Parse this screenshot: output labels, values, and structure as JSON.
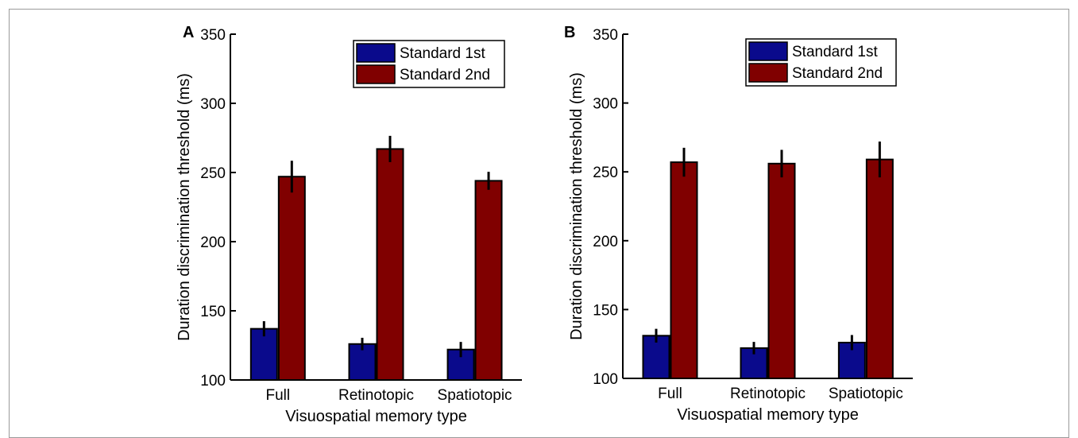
{
  "chart_data": [
    {
      "type": "bar",
      "panel": "A",
      "categories": [
        "Full",
        "Retinotopic",
        "Spatiotopic"
      ],
      "series": [
        {
          "name": "Standard 1st",
          "color": "#0a0a8c",
          "values": [
            137,
            126,
            122
          ],
          "errors": [
            5.5,
            4.5,
            5.5
          ]
        },
        {
          "name": "Standard 2nd",
          "color": "#800000",
          "values": [
            247,
            267,
            244
          ],
          "errors": [
            11.5,
            9.5,
            6.5
          ]
        }
      ],
      "xlabel": "Visuospatial memory type",
      "ylabel": "Duration discrimination threshold (ms)",
      "ylim": [
        100,
        350
      ],
      "yticks": [
        "100",
        "150",
        "200",
        "250",
        "300",
        "350"
      ],
      "legend": "top-right",
      "grid": false
    },
    {
      "type": "bar",
      "panel": "B",
      "categories": [
        "Full",
        "Retinotopic",
        "Spatiotopic"
      ],
      "series": [
        {
          "name": "Standard 1st",
          "color": "#0a0a8c",
          "values": [
            131,
            122,
            126
          ],
          "errors": [
            5,
            4.5,
            5.5
          ]
        },
        {
          "name": "Standard 2nd",
          "color": "#800000",
          "values": [
            257,
            256,
            259
          ],
          "errors": [
            10.5,
            10,
            13
          ]
        }
      ],
      "xlabel": "Visuospatial memory type",
      "ylabel": "Duration discrimination threshold (ms)",
      "ylim": [
        100,
        350
      ],
      "yticks": [
        "100",
        "150",
        "200",
        "250",
        "300",
        "350"
      ],
      "legend": "top-right",
      "grid": false
    }
  ]
}
